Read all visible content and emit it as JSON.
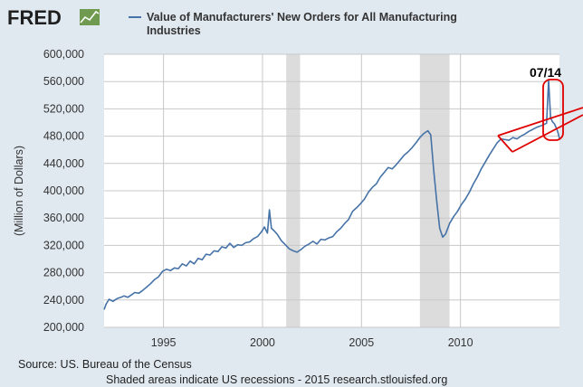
{
  "header": {
    "logo_text": "FRED",
    "logo_icon": "chart-line-icon",
    "legend_line1": "Value of Manufacturers' New Orders for All Manufacturing",
    "legend_line2": "Industries"
  },
  "footer": {
    "source": "Source: US. Bureau of the Census",
    "note": "Shaded areas indicate US recessions - 2015 research.stlouisfed.org"
  },
  "annotation": {
    "label": "07/14"
  },
  "colors": {
    "series": "#4572a7",
    "recession": "#dcdcdc",
    "annotation": "#e00000",
    "background": "#e1e9f0",
    "plot": "#ffffff"
  },
  "chart_data": {
    "type": "line",
    "title": "Value of Manufacturers' New Orders for All Manufacturing Industries",
    "xlabel": "",
    "ylabel": "(Million of Dollars)",
    "xlim": [
      1992.0,
      2015.0
    ],
    "ylim": [
      200000,
      600000
    ],
    "y_ticks": [
      200000,
      240000,
      280000,
      320000,
      360000,
      400000,
      440000,
      480000,
      520000,
      560000,
      600000
    ],
    "y_tick_labels": [
      "200,000",
      "240,000",
      "280,000",
      "320,000",
      "360,000",
      "400,000",
      "440,000",
      "480,000",
      "520,000",
      "560,000",
      "600,000"
    ],
    "x_ticks": [
      1995,
      2000,
      2005,
      2010
    ],
    "x_tick_labels": [
      "1995",
      "2000",
      "2005",
      "2010"
    ],
    "grid": true,
    "recessions": [
      [
        2001.2,
        2001.9
      ],
      [
        2007.95,
        2009.45
      ]
    ],
    "series": [
      {
        "name": "Value of Manufacturers' New Orders for All Manufacturing Industries",
        "x": [
          1992.0,
          1992.1,
          1992.25,
          1992.45,
          1992.65,
          1992.85,
          1993.0,
          1993.2,
          1993.4,
          1993.55,
          1993.75,
          1993.95,
          1994.15,
          1994.35,
          1994.55,
          1994.75,
          1994.95,
          1995.15,
          1995.35,
          1995.55,
          1995.75,
          1995.95,
          1996.15,
          1996.35,
          1996.55,
          1996.75,
          1996.95,
          1997.15,
          1997.35,
          1997.55,
          1997.75,
          1997.95,
          1998.15,
          1998.35,
          1998.55,
          1998.75,
          1998.95,
          1999.15,
          1999.35,
          1999.55,
          1999.75,
          1999.95,
          2000.1,
          2000.25,
          2000.35,
          2000.45,
          2000.6,
          2000.75,
          2000.95,
          2001.15,
          2001.35,
          2001.55,
          2001.75,
          2001.95,
          2002.15,
          2002.35,
          2002.55,
          2002.75,
          2002.95,
          2003.15,
          2003.35,
          2003.55,
          2003.75,
          2003.95,
          2004.15,
          2004.35,
          2004.55,
          2004.75,
          2004.95,
          2005.15,
          2005.35,
          2005.55,
          2005.75,
          2005.95,
          2006.15,
          2006.35,
          2006.55,
          2006.75,
          2006.95,
          2007.15,
          2007.35,
          2007.55,
          2007.75,
          2007.95,
          2008.15,
          2008.35,
          2008.5,
          2008.65,
          2008.8,
          2008.95,
          2009.1,
          2009.25,
          2009.45,
          2009.65,
          2009.85,
          2010.05,
          2010.25,
          2010.45,
          2010.65,
          2010.85,
          2011.05,
          2011.25,
          2011.45,
          2011.65,
          2011.85,
          2012.05,
          2012.25,
          2012.45,
          2012.65,
          2012.85,
          2013.05,
          2013.25,
          2013.45,
          2013.65,
          2013.85,
          2014.05,
          2014.2,
          2014.35,
          2014.45,
          2014.55,
          2014.65,
          2014.75,
          2014.9,
          2015.0
        ],
        "values": [
          226000,
          234000,
          241000,
          238000,
          242000,
          244000,
          246000,
          244000,
          248000,
          251000,
          250000,
          254000,
          259000,
          264000,
          270000,
          274000,
          282000,
          285000,
          283000,
          287000,
          286000,
          293000,
          290000,
          297000,
          293000,
          301000,
          299000,
          307000,
          306000,
          312000,
          311000,
          318000,
          316000,
          323000,
          317000,
          321000,
          320000,
          324000,
          325000,
          330000,
          333000,
          340000,
          347000,
          338000,
          372000,
          345000,
          341000,
          336000,
          327000,
          321000,
          315000,
          312000,
          310000,
          314000,
          319000,
          322000,
          326000,
          322000,
          329000,
          328000,
          331000,
          333000,
          340000,
          345000,
          352000,
          358000,
          370000,
          375000,
          381000,
          388000,
          398000,
          405000,
          410000,
          420000,
          427000,
          434000,
          432000,
          438000,
          445000,
          452000,
          457000,
          463000,
          470000,
          478000,
          484000,
          488000,
          482000,
          430000,
          385000,
          345000,
          332000,
          337000,
          352000,
          362000,
          370000,
          380000,
          388000,
          398000,
          410000,
          420000,
          432000,
          442000,
          452000,
          461000,
          470000,
          476000,
          475000,
          474000,
          478000,
          476000,
          480000,
          483000,
          487000,
          490000,
          493000,
          495000,
          497000,
          499000,
          562000,
          507000,
          501000,
          498000,
          488000,
          477000
        ]
      }
    ]
  }
}
